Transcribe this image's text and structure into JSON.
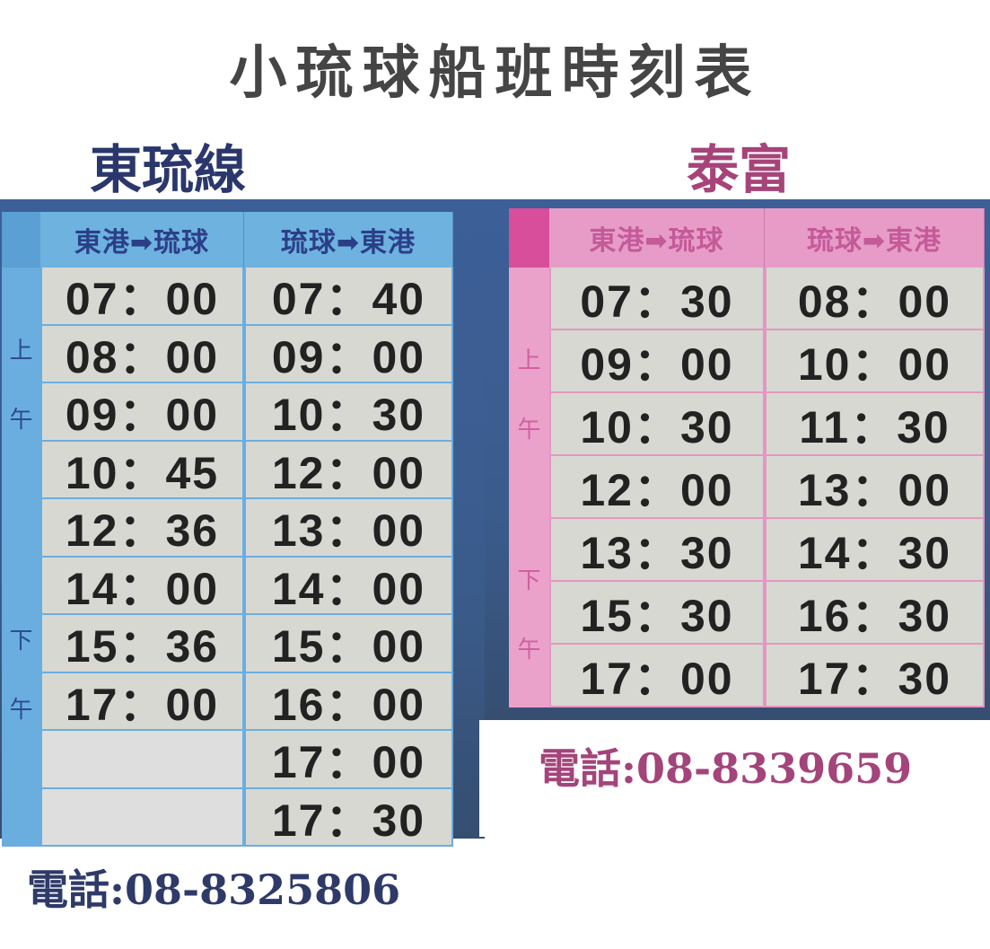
{
  "title": "小琉球船班時刻表",
  "east": {
    "name": "東琉線",
    "headers": [
      "東港➡琉球",
      "琉球➡東港"
    ],
    "am_label": [
      "上",
      "午"
    ],
    "pm_label": [
      "下",
      "午"
    ],
    "rows": [
      [
        "07：00",
        "07：40"
      ],
      [
        "08：00",
        "09：00"
      ],
      [
        "09：00",
        "10：30"
      ],
      [
        "10：45",
        "12：00"
      ],
      [
        "12：36",
        "13：00"
      ],
      [
        "14：00",
        "14：00"
      ],
      [
        "15：36",
        "15：00"
      ],
      [
        "17：00",
        "16：00"
      ],
      [
        "",
        "17：00"
      ],
      [
        "",
        "17：30"
      ]
    ],
    "phone": "電話:08-8325806",
    "color": "#2b376c"
  },
  "taifu": {
    "name": "泰富",
    "headers": [
      "東港➡琉球",
      "琉球➡東港"
    ],
    "am_label": [
      "上",
      "午"
    ],
    "pm_label": [
      "下",
      "午"
    ],
    "rows": [
      [
        "07：30",
        "08：00"
      ],
      [
        "09：00",
        "10：00"
      ],
      [
        "10：30",
        "11：30"
      ],
      [
        "12：00",
        "13：00"
      ],
      [
        "13：30",
        "14：30"
      ],
      [
        "15：30",
        "16：30"
      ],
      [
        "17：00",
        "17：30"
      ]
    ],
    "phone": "電話:08-8339659",
    "color": "#a6447a"
  }
}
